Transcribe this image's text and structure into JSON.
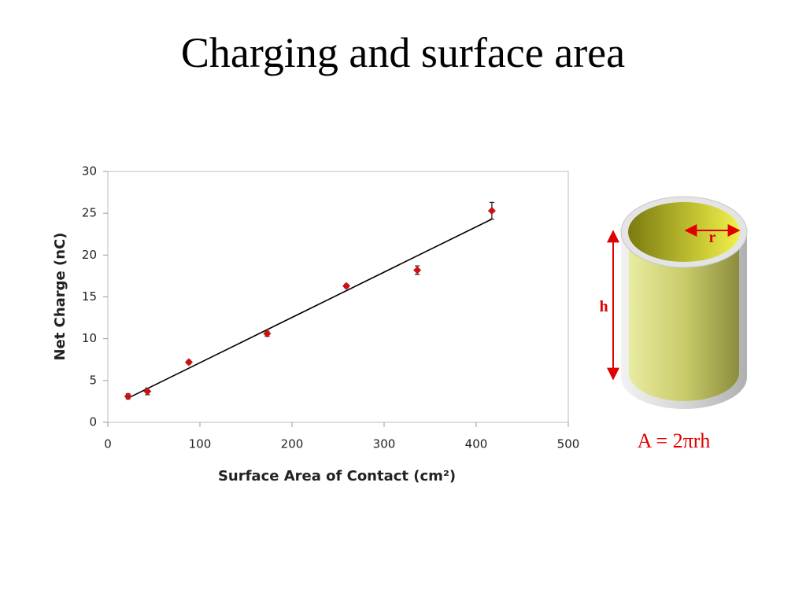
{
  "chart_data": {
    "type": "scatter",
    "title": "Charging and surface area",
    "xlabel": "Surface Area of Contact (cm²)",
    "ylabel": "Net Charge (nC)",
    "x": [
      22,
      43,
      88,
      173,
      259,
      336,
      417
    ],
    "series": [
      {
        "color": "#cc1111",
        "values": [
          3.1,
          3.7,
          7.2,
          10.6,
          16.3,
          18.2,
          25.3
        ],
        "errors": [
          0.3,
          0.4,
          0.2,
          0.3,
          0.2,
          0.5,
          1.0
        ]
      }
    ],
    "trendline": {
      "x": [
        22,
        417
      ],
      "y": [
        2.9,
        24.3
      ],
      "color": "#000000"
    },
    "xlim": [
      0,
      500
    ],
    "xticks": [
      0,
      100,
      200,
      300,
      400,
      500
    ],
    "ylim": [
      0,
      30
    ],
    "yticks": [
      0,
      5,
      10,
      15,
      20,
      25,
      30
    ]
  },
  "diagram": {
    "radius_label": "r",
    "height_label": "h",
    "formula": "A = 2πrh"
  }
}
